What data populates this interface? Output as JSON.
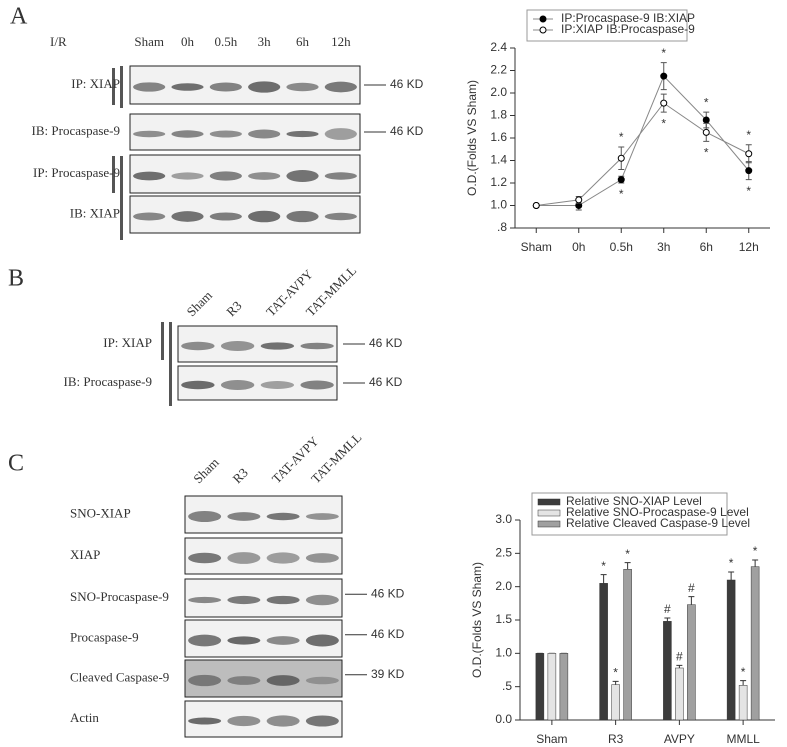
{
  "panel_labels": [
    "A",
    "B",
    "C"
  ],
  "blots": [
    {
      "header": "I/R",
      "lanes": [
        "Sham",
        "0h",
        "0.5h",
        "3h",
        "6h",
        "12h"
      ],
      "rows": [
        {
          "label": "IP: XIAP",
          "size": "46 KD"
        },
        {
          "label": "IB: Procaspase-9",
          "size": "46 KD"
        },
        {
          "label": "IP: Procaspase-9"
        },
        {
          "label": "IB: XIAP"
        }
      ]
    },
    {
      "lanes": [
        "Sham",
        "R3",
        "TAT-AVPY",
        "TAT-MMLL"
      ],
      "rows": [
        {
          "label": "IP: XIAP",
          "size": "46 KD"
        },
        {
          "label": "IB: Procaspase-9",
          "size": "46 KD"
        }
      ]
    },
    {
      "lanes": [
        "Sham",
        "R3",
        "TAT-AVPY",
        "TAT-MMLL"
      ],
      "rows": [
        {
          "label": "SNO-XIAP"
        },
        {
          "label": "XIAP"
        },
        {
          "label": "SNO-Procaspase-9",
          "size": "46 KD"
        },
        {
          "label": "Procaspase-9",
          "size": "46 KD"
        },
        {
          "label": "Cleaved Caspase-9",
          "size": "39 KD"
        },
        {
          "label": "Actin"
        }
      ]
    }
  ],
  "chart_data": [
    {
      "type": "line",
      "ylabel": "O.D.(Folds VS Sham)",
      "categories": [
        "Sham",
        "0h",
        "0.5h",
        "3h",
        "6h",
        "12h"
      ],
      "line_color": "#888888",
      "legend": "above",
      "series": [
        {
          "name": "IP:Procaspase-9 IB:XIAP",
          "color": "#000000",
          "values": [
            1.0,
            1.0,
            1.23,
            2.15,
            1.76,
            1.31
          ],
          "errors": [
            0,
            0.04,
            0.03,
            0.12,
            0.07,
            0.08
          ],
          "significance": [
            null,
            null,
            "*",
            "*",
            "*",
            "*"
          ]
        },
        {
          "name": "IP:XIAP IB:Procaspase-9",
          "color": "#ffffff",
          "values": [
            1.0,
            1.05,
            1.42,
            1.91,
            1.65,
            1.46
          ],
          "errors": [
            0,
            0.03,
            0.1,
            0.08,
            0.08,
            0.08
          ],
          "significance": [
            null,
            null,
            "*",
            "*",
            "*",
            "*"
          ]
        }
      ],
      "ylim": [
        0.8,
        2.4
      ],
      "yticks": [
        {
          "value": 0.8,
          "label": ".8"
        },
        {
          "value": 1.0,
          "label": "1.0"
        },
        1.2,
        1.4,
        1.6,
        1.8,
        {
          "value": 2.0,
          "label": "2.0"
        },
        2.2,
        2.4
      ]
    },
    {
      "type": "bar",
      "ylabel": "O.D.(Folds VS Sham)",
      "categories": [
        "Sham",
        "R3",
        "AVPY",
        "MMLL"
      ],
      "legend": "upper left",
      "series": [
        {
          "name": "Relative SNO-XIAP Level",
          "color": "#3c3c3c",
          "values": [
            1.0,
            2.05,
            1.48,
            2.1
          ],
          "errors": [
            0,
            0.13,
            0.05,
            0.12
          ],
          "significance": [
            null,
            "*",
            "#",
            "*"
          ]
        },
        {
          "name": "Relative SNO-Procaspase-9 Level",
          "color": "#e4e4e4",
          "values": [
            1.0,
            0.53,
            0.78,
            0.52
          ],
          "errors": [
            0,
            0.05,
            0.04,
            0.07
          ],
          "significance": [
            null,
            "*",
            "#",
            "*"
          ]
        },
        {
          "name": "Relative Cleaved Caspase-9 Level",
          "color": "#a0a0a0",
          "values": [
            1.0,
            2.26,
            1.73,
            2.3
          ],
          "errors": [
            0,
            0.1,
            0.12,
            0.1
          ],
          "significance": [
            null,
            "*",
            "#",
            "*"
          ]
        }
      ],
      "ylim": [
        0,
        3.0
      ],
      "yticks": [
        {
          "value": 0,
          "label": "0.0"
        },
        {
          "value": 0.5,
          "label": ".5"
        },
        {
          "value": 1.0,
          "label": "1.0"
        },
        1.5,
        {
          "value": 2.0,
          "label": "2.0"
        },
        2.5,
        {
          "value": 3.0,
          "label": "3.0"
        }
      ]
    }
  ]
}
